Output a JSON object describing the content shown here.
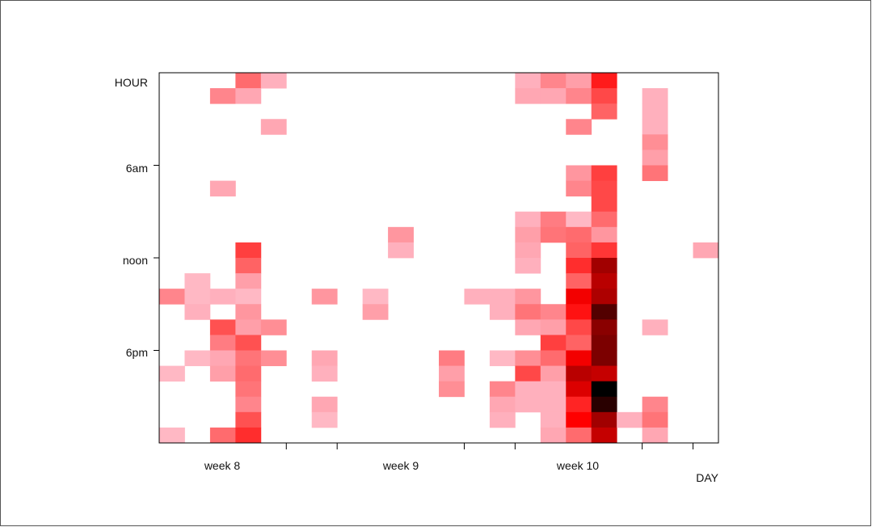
{
  "chart_data": {
    "type": "heatmap",
    "xlabel": "DAY",
    "ylabel": "HOUR",
    "x_tick_labels": [
      "week 8",
      "week 9",
      "week 10"
    ],
    "y_tick_labels": [
      "6am",
      "noon",
      "6pm"
    ],
    "grid": false,
    "legend": "none",
    "columns": 22,
    "rows": 24,
    "max_value": 1.0,
    "colorscale": [
      "#ffffff",
      "#ffb0bd",
      "#ff5a5a",
      "#ff0000",
      "#8a0000",
      "#000000"
    ],
    "cells": [
      {
        "c": 3,
        "r": 0,
        "v": 0.36
      },
      {
        "c": 4,
        "r": 0,
        "v": 0.2
      },
      {
        "c": 2,
        "r": 1,
        "v": 0.3
      },
      {
        "c": 3,
        "r": 1,
        "v": 0.22
      },
      {
        "c": 4,
        "r": 3,
        "v": 0.22
      },
      {
        "c": 2,
        "r": 7,
        "v": 0.22
      },
      {
        "c": 3,
        "r": 11,
        "v": 0.46
      },
      {
        "c": 3,
        "r": 12,
        "v": 0.38
      },
      {
        "c": 1,
        "r": 13,
        "v": 0.18
      },
      {
        "c": 3,
        "r": 13,
        "v": 0.24
      },
      {
        "c": 0,
        "r": 14,
        "v": 0.3
      },
      {
        "c": 1,
        "r": 14,
        "v": 0.18
      },
      {
        "c": 2,
        "r": 14,
        "v": 0.2
      },
      {
        "c": 3,
        "r": 14,
        "v": 0.18
      },
      {
        "c": 1,
        "r": 15,
        "v": 0.2
      },
      {
        "c": 3,
        "r": 15,
        "v": 0.26
      },
      {
        "c": 2,
        "r": 16,
        "v": 0.42
      },
      {
        "c": 3,
        "r": 16,
        "v": 0.24
      },
      {
        "c": 4,
        "r": 16,
        "v": 0.28
      },
      {
        "c": 2,
        "r": 17,
        "v": 0.32
      },
      {
        "c": 3,
        "r": 17,
        "v": 0.42
      },
      {
        "c": 1,
        "r": 18,
        "v": 0.18
      },
      {
        "c": 2,
        "r": 18,
        "v": 0.22
      },
      {
        "c": 3,
        "r": 18,
        "v": 0.34
      },
      {
        "c": 4,
        "r": 18,
        "v": 0.28
      },
      {
        "c": 0,
        "r": 19,
        "v": 0.18
      },
      {
        "c": 2,
        "r": 19,
        "v": 0.24
      },
      {
        "c": 3,
        "r": 19,
        "v": 0.36
      },
      {
        "c": 3,
        "r": 20,
        "v": 0.34
      },
      {
        "c": 3,
        "r": 21,
        "v": 0.3
      },
      {
        "c": 3,
        "r": 22,
        "v": 0.42
      },
      {
        "c": 0,
        "r": 23,
        "v": 0.18
      },
      {
        "c": 2,
        "r": 23,
        "v": 0.36
      },
      {
        "c": 3,
        "r": 23,
        "v": 0.5
      },
      {
        "c": 6,
        "r": 14,
        "v": 0.26
      },
      {
        "c": 6,
        "r": 18,
        "v": 0.22
      },
      {
        "c": 6,
        "r": 19,
        "v": 0.2
      },
      {
        "c": 6,
        "r": 21,
        "v": 0.22
      },
      {
        "c": 6,
        "r": 22,
        "v": 0.18
      },
      {
        "c": 8,
        "r": 14,
        "v": 0.18
      },
      {
        "c": 8,
        "r": 15,
        "v": 0.24
      },
      {
        "c": 9,
        "r": 10,
        "v": 0.26
      },
      {
        "c": 9,
        "r": 11,
        "v": 0.2
      },
      {
        "c": 11,
        "r": 18,
        "v": 0.32
      },
      {
        "c": 11,
        "r": 19,
        "v": 0.24
      },
      {
        "c": 11,
        "r": 20,
        "v": 0.28
      },
      {
        "c": 12,
        "r": 14,
        "v": 0.2
      },
      {
        "c": 13,
        "r": 14,
        "v": 0.2
      },
      {
        "c": 13,
        "r": 15,
        "v": 0.2
      },
      {
        "c": 13,
        "r": 18,
        "v": 0.18
      },
      {
        "c": 13,
        "r": 20,
        "v": 0.3
      },
      {
        "c": 13,
        "r": 21,
        "v": 0.22
      },
      {
        "c": 13,
        "r": 22,
        "v": 0.2
      },
      {
        "c": 14,
        "r": 0,
        "v": 0.2
      },
      {
        "c": 14,
        "r": 1,
        "v": 0.22
      },
      {
        "c": 14,
        "r": 9,
        "v": 0.2
      },
      {
        "c": 14,
        "r": 10,
        "v": 0.24
      },
      {
        "c": 14,
        "r": 11,
        "v": 0.22
      },
      {
        "c": 14,
        "r": 12,
        "v": 0.2
      },
      {
        "c": 14,
        "r": 14,
        "v": 0.26
      },
      {
        "c": 14,
        "r": 15,
        "v": 0.34
      },
      {
        "c": 14,
        "r": 16,
        "v": 0.22
      },
      {
        "c": 14,
        "r": 18,
        "v": 0.28
      },
      {
        "c": 14,
        "r": 19,
        "v": 0.44
      },
      {
        "c": 14,
        "r": 20,
        "v": 0.2
      },
      {
        "c": 14,
        "r": 21,
        "v": 0.2
      },
      {
        "c": 15,
        "r": 0,
        "v": 0.3
      },
      {
        "c": 15,
        "r": 1,
        "v": 0.22
      },
      {
        "c": 15,
        "r": 9,
        "v": 0.32
      },
      {
        "c": 15,
        "r": 10,
        "v": 0.34
      },
      {
        "c": 15,
        "r": 15,
        "v": 0.3
      },
      {
        "c": 15,
        "r": 16,
        "v": 0.24
      },
      {
        "c": 15,
        "r": 17,
        "v": 0.46
      },
      {
        "c": 15,
        "r": 18,
        "v": 0.36
      },
      {
        "c": 15,
        "r": 19,
        "v": 0.24
      },
      {
        "c": 15,
        "r": 20,
        "v": 0.2
      },
      {
        "c": 15,
        "r": 21,
        "v": 0.2
      },
      {
        "c": 15,
        "r": 22,
        "v": 0.2
      },
      {
        "c": 15,
        "r": 23,
        "v": 0.22
      },
      {
        "c": 16,
        "r": 0,
        "v": 0.24
      },
      {
        "c": 16,
        "r": 1,
        "v": 0.3
      },
      {
        "c": 16,
        "r": 3,
        "v": 0.3
      },
      {
        "c": 16,
        "r": 6,
        "v": 0.26
      },
      {
        "c": 16,
        "r": 7,
        "v": 0.3
      },
      {
        "c": 16,
        "r": 9,
        "v": 0.18
      },
      {
        "c": 16,
        "r": 10,
        "v": 0.36
      },
      {
        "c": 16,
        "r": 11,
        "v": 0.38
      },
      {
        "c": 16,
        "r": 12,
        "v": 0.5
      },
      {
        "c": 16,
        "r": 13,
        "v": 0.38
      },
      {
        "c": 16,
        "r": 14,
        "v": 0.62
      },
      {
        "c": 16,
        "r": 15,
        "v": 0.56
      },
      {
        "c": 16,
        "r": 16,
        "v": 0.44
      },
      {
        "c": 16,
        "r": 17,
        "v": 0.38
      },
      {
        "c": 16,
        "r": 18,
        "v": 0.62
      },
      {
        "c": 16,
        "r": 19,
        "v": 0.72
      },
      {
        "c": 16,
        "r": 20,
        "v": 0.66
      },
      {
        "c": 16,
        "r": 21,
        "v": 0.52
      },
      {
        "c": 16,
        "r": 22,
        "v": 0.6
      },
      {
        "c": 16,
        "r": 23,
        "v": 0.36
      },
      {
        "c": 17,
        "r": 0,
        "v": 0.54
      },
      {
        "c": 17,
        "r": 1,
        "v": 0.44
      },
      {
        "c": 17,
        "r": 2,
        "v": 0.38
      },
      {
        "c": 17,
        "r": 6,
        "v": 0.46
      },
      {
        "c": 17,
        "r": 7,
        "v": 0.44
      },
      {
        "c": 17,
        "r": 8,
        "v": 0.44
      },
      {
        "c": 17,
        "r": 9,
        "v": 0.36
      },
      {
        "c": 17,
        "r": 10,
        "v": 0.26
      },
      {
        "c": 17,
        "r": 11,
        "v": 0.48
      },
      {
        "c": 17,
        "r": 12,
        "v": 0.76
      },
      {
        "c": 17,
        "r": 13,
        "v": 0.72
      },
      {
        "c": 17,
        "r": 14,
        "v": 0.74
      },
      {
        "c": 17,
        "r": 15,
        "v": 0.88
      },
      {
        "c": 17,
        "r": 16,
        "v": 0.8
      },
      {
        "c": 17,
        "r": 17,
        "v": 0.82
      },
      {
        "c": 17,
        "r": 18,
        "v": 0.82
      },
      {
        "c": 17,
        "r": 19,
        "v": 0.7
      },
      {
        "c": 17,
        "r": 20,
        "v": 1.0
      },
      {
        "c": 17,
        "r": 21,
        "v": 0.94
      },
      {
        "c": 17,
        "r": 22,
        "v": 0.76
      },
      {
        "c": 17,
        "r": 23,
        "v": 0.7
      },
      {
        "c": 18,
        "r": 22,
        "v": 0.2
      },
      {
        "c": 19,
        "r": 1,
        "v": 0.2
      },
      {
        "c": 19,
        "r": 2,
        "v": 0.2
      },
      {
        "c": 19,
        "r": 3,
        "v": 0.2
      },
      {
        "c": 19,
        "r": 4,
        "v": 0.28
      },
      {
        "c": 19,
        "r": 5,
        "v": 0.24
      },
      {
        "c": 19,
        "r": 6,
        "v": 0.34
      },
      {
        "c": 19,
        "r": 16,
        "v": 0.2
      },
      {
        "c": 19,
        "r": 21,
        "v": 0.3
      },
      {
        "c": 19,
        "r": 22,
        "v": 0.34
      },
      {
        "c": 19,
        "r": 23,
        "v": 0.22
      },
      {
        "c": 21,
        "r": 11,
        "v": 0.22
      }
    ]
  }
}
